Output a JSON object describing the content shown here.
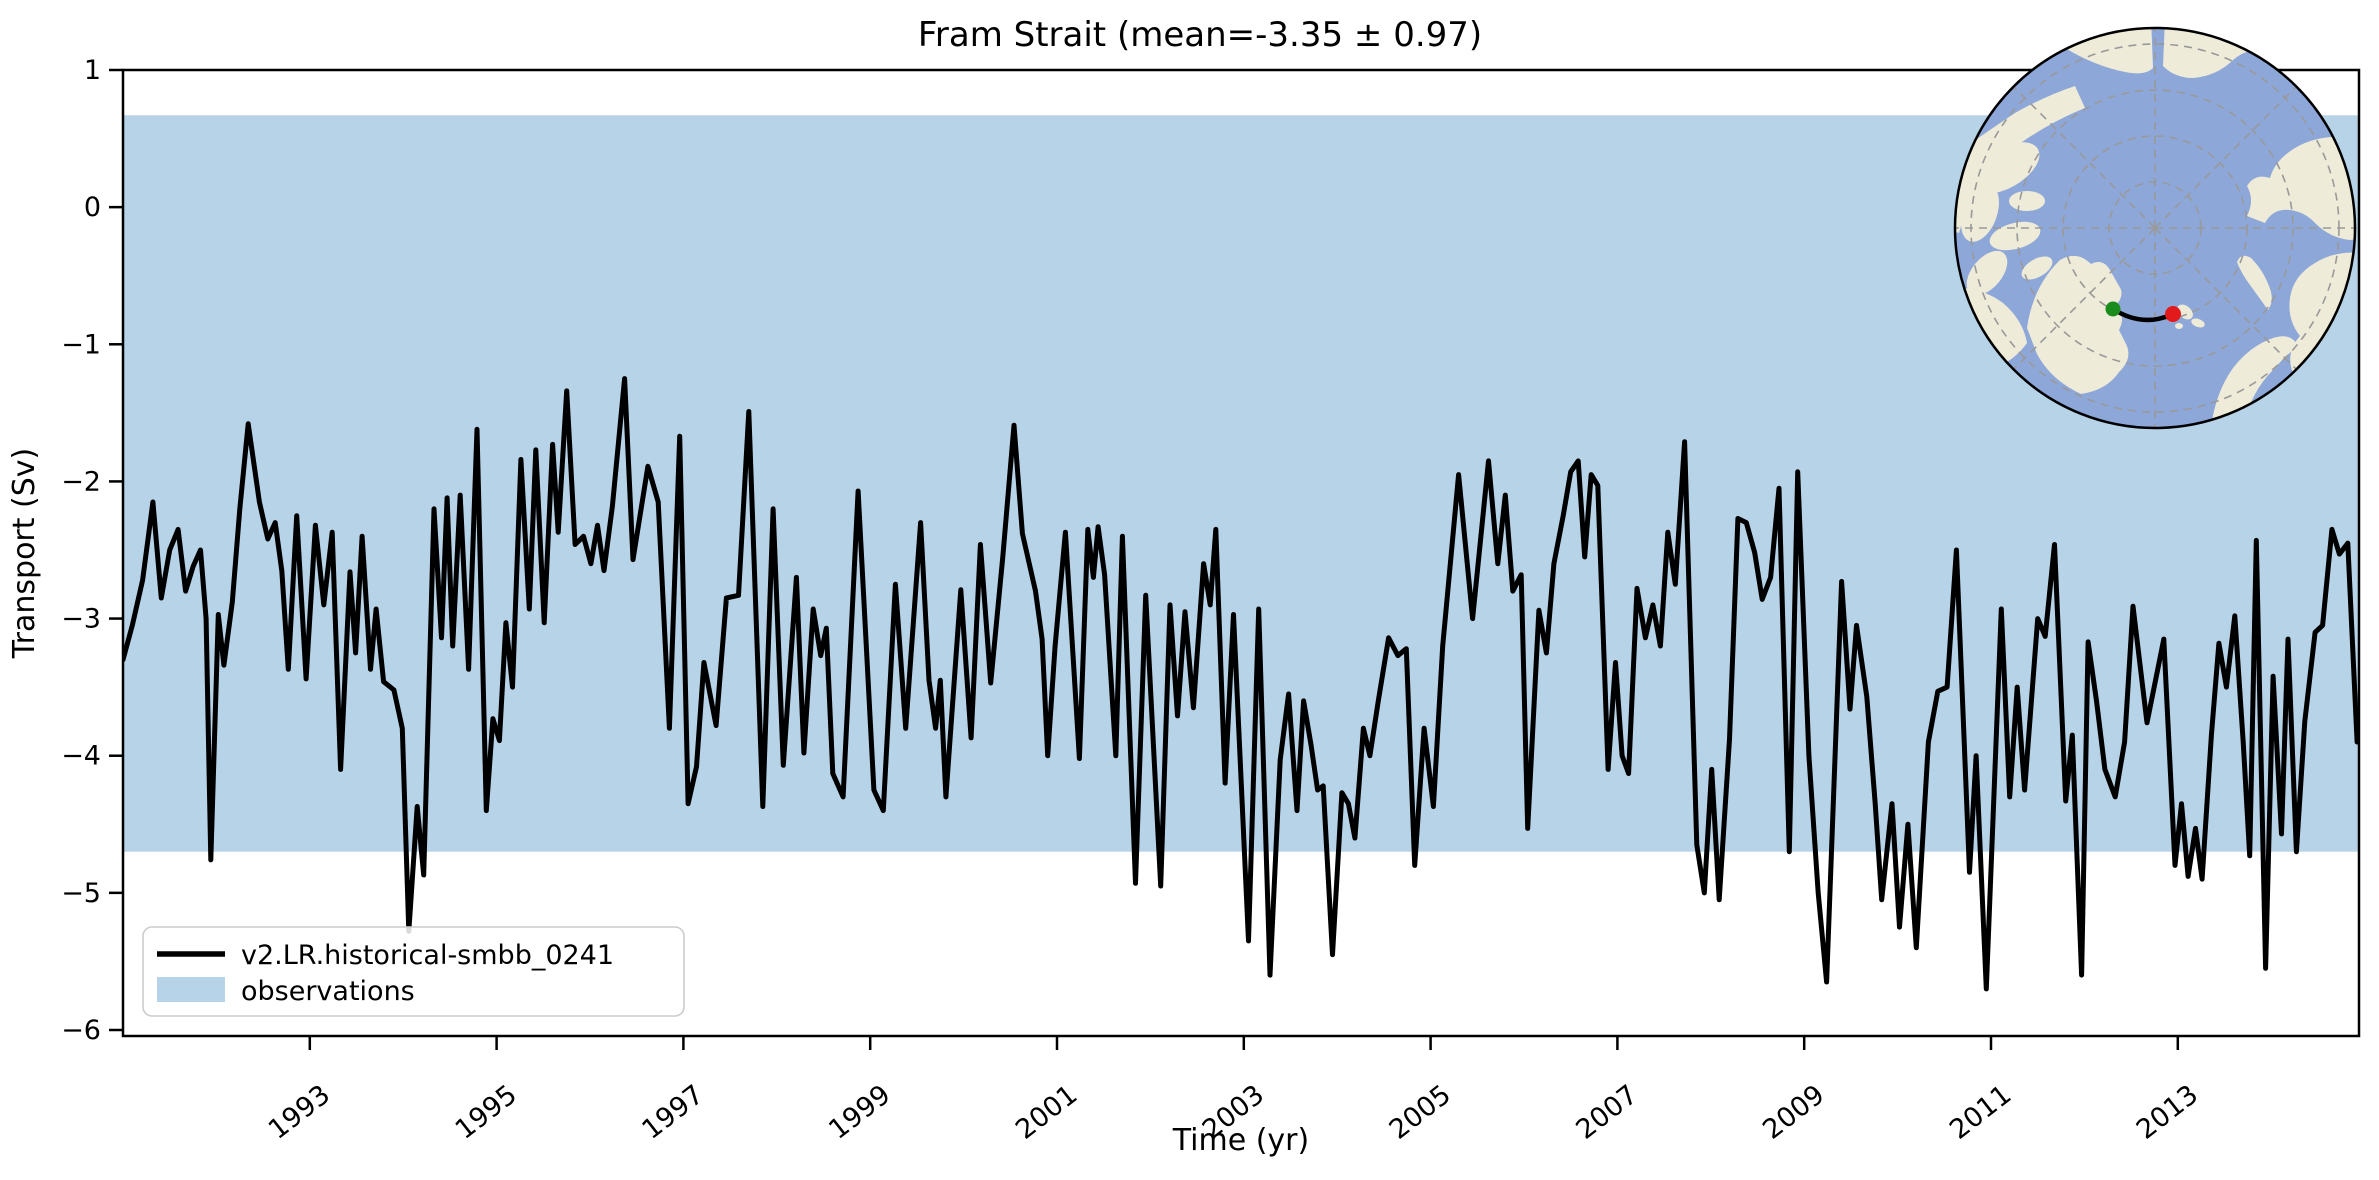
{
  "title": "Fram Strait (mean=-3.35 ± 0.97)",
  "axes": {
    "xlabel": "Time (yr)",
    "ylabel": "Transport (Sv)",
    "xticks": [
      1993,
      1995,
      1997,
      1999,
      2001,
      2003,
      2005,
      2007,
      2009,
      2011,
      2013
    ],
    "ytick_labels": [
      "1",
      "0",
      "−1",
      "−2",
      "−3",
      "−4",
      "−5",
      "−6"
    ],
    "ytick_values": [
      1,
      0,
      -1,
      -2,
      -3,
      -4,
      -5,
      -6
    ]
  },
  "legend": {
    "entries": [
      {
        "label": "v2.LR.historical-smbb_0241",
        "swatch": "line"
      },
      {
        "label": "observations",
        "swatch": "patch"
      }
    ]
  },
  "colors": {
    "line": "#000000",
    "band": "#b7d3e8",
    "spine": "#000000",
    "legend_border": "#cccccc",
    "map_ocean": "#8ea7d9",
    "map_land": "#eeebd8",
    "map_graticule": "#999999",
    "marker_start": "#1a8c1c",
    "marker_end": "#e31a1c"
  },
  "inset_map": {
    "description": "north-polar view with Fram Strait section",
    "start_marker": "green-dot",
    "end_marker": "red-dot"
  },
  "chart_data": {
    "type": "line",
    "title": "Fram Strait (mean=-3.35 ± 0.97)",
    "xlabel": "Time (yr)",
    "ylabel": "Transport (Sv)",
    "xlim": [
      1991.0,
      2015.0
    ],
    "ylim": [
      -6.05,
      1.0
    ],
    "grid": false,
    "legend_position": "lower left",
    "mean": -3.35,
    "std": 0.97,
    "observations_band": {
      "label": "observations",
      "low": -4.7,
      "high": 0.67
    },
    "series": [
      {
        "name": "v2.LR.historical-smbb_0241",
        "units": "Sv",
        "points": [
          [
            1991.0,
            -3.3
          ],
          [
            1991.1,
            -3.05
          ],
          [
            1991.21,
            -2.72
          ],
          [
            1991.32,
            -2.15
          ],
          [
            1991.41,
            -2.85
          ],
          [
            1991.5,
            -2.5
          ],
          [
            1991.59,
            -2.35
          ],
          [
            1991.67,
            -2.8
          ],
          [
            1991.75,
            -2.62
          ],
          [
            1991.83,
            -2.5
          ],
          [
            1991.89,
            -3.0
          ],
          [
            1991.94,
            -4.76
          ],
          [
            1992.02,
            -2.97
          ],
          [
            1992.08,
            -3.34
          ],
          [
            1992.17,
            -2.88
          ],
          [
            1992.25,
            -2.2
          ],
          [
            1992.34,
            -1.58
          ],
          [
            1992.46,
            -2.15
          ],
          [
            1992.55,
            -2.42
          ],
          [
            1992.63,
            -2.3
          ],
          [
            1992.7,
            -2.65
          ],
          [
            1992.77,
            -3.37
          ],
          [
            1992.86,
            -2.25
          ],
          [
            1992.96,
            -3.44
          ],
          [
            1993.06,
            -2.32
          ],
          [
            1993.15,
            -2.9
          ],
          [
            1993.24,
            -2.37
          ],
          [
            1993.33,
            -4.1
          ],
          [
            1993.43,
            -2.66
          ],
          [
            1993.49,
            -3.25
          ],
          [
            1993.56,
            -2.4
          ],
          [
            1993.65,
            -3.37
          ],
          [
            1993.71,
            -2.93
          ],
          [
            1993.79,
            -3.46
          ],
          [
            1993.9,
            -3.52
          ],
          [
            1993.99,
            -3.8
          ],
          [
            1994.06,
            -5.28
          ],
          [
            1994.15,
            -4.37
          ],
          [
            1994.22,
            -4.87
          ],
          [
            1994.33,
            -2.2
          ],
          [
            1994.41,
            -3.14
          ],
          [
            1994.47,
            -2.12
          ],
          [
            1994.53,
            -3.2
          ],
          [
            1994.61,
            -2.1
          ],
          [
            1994.7,
            -3.37
          ],
          [
            1994.79,
            -1.62
          ],
          [
            1994.89,
            -4.4
          ],
          [
            1994.96,
            -3.73
          ],
          [
            1995.03,
            -3.89
          ],
          [
            1995.1,
            -3.03
          ],
          [
            1995.17,
            -3.5
          ],
          [
            1995.26,
            -1.84
          ],
          [
            1995.35,
            -2.93
          ],
          [
            1995.42,
            -1.77
          ],
          [
            1995.51,
            -3.03
          ],
          [
            1995.6,
            -1.73
          ],
          [
            1995.66,
            -2.37
          ],
          [
            1995.75,
            -1.34
          ],
          [
            1995.84,
            -2.46
          ],
          [
            1995.93,
            -2.4
          ],
          [
            1996.01,
            -2.6
          ],
          [
            1996.08,
            -2.32
          ],
          [
            1996.15,
            -2.65
          ],
          [
            1996.24,
            -2.18
          ],
          [
            1996.37,
            -1.25
          ],
          [
            1996.46,
            -2.57
          ],
          [
            1996.62,
            -1.89
          ],
          [
            1996.73,
            -2.15
          ],
          [
            1996.85,
            -3.8
          ],
          [
            1996.96,
            -1.67
          ],
          [
            1997.05,
            -4.35
          ],
          [
            1997.14,
            -4.08
          ],
          [
            1997.22,
            -3.32
          ],
          [
            1997.35,
            -3.78
          ],
          [
            1997.46,
            -2.85
          ],
          [
            1997.59,
            -2.83
          ],
          [
            1997.7,
            -1.49
          ],
          [
            1997.85,
            -4.37
          ],
          [
            1997.96,
            -2.2
          ],
          [
            1998.07,
            -4.07
          ],
          [
            1998.21,
            -2.7
          ],
          [
            1998.29,
            -3.98
          ],
          [
            1998.39,
            -2.93
          ],
          [
            1998.47,
            -3.27
          ],
          [
            1998.53,
            -3.07
          ],
          [
            1998.6,
            -4.13
          ],
          [
            1998.71,
            -4.3
          ],
          [
            1998.87,
            -2.07
          ],
          [
            1999.04,
            -4.25
          ],
          [
            1999.14,
            -4.4
          ],
          [
            1999.27,
            -2.75
          ],
          [
            1999.38,
            -3.8
          ],
          [
            1999.54,
            -2.3
          ],
          [
            1999.63,
            -3.45
          ],
          [
            1999.7,
            -3.8
          ],
          [
            1999.75,
            -3.45
          ],
          [
            1999.81,
            -4.3
          ],
          [
            1999.97,
            -2.79
          ],
          [
            2000.08,
            -3.87
          ],
          [
            2000.18,
            -2.46
          ],
          [
            2000.29,
            -3.47
          ],
          [
            2000.42,
            -2.55
          ],
          [
            2000.54,
            -1.59
          ],
          [
            2000.63,
            -2.38
          ],
          [
            2000.77,
            -2.8
          ],
          [
            2000.84,
            -3.15
          ],
          [
            2000.9,
            -4.0
          ],
          [
            2000.98,
            -3.2
          ],
          [
            2001.09,
            -2.37
          ],
          [
            2001.24,
            -4.02
          ],
          [
            2001.33,
            -2.35
          ],
          [
            2001.39,
            -2.7
          ],
          [
            2001.44,
            -2.33
          ],
          [
            2001.51,
            -2.68
          ],
          [
            2001.63,
            -4.0
          ],
          [
            2001.7,
            -2.4
          ],
          [
            2001.84,
            -4.93
          ],
          [
            2001.95,
            -2.83
          ],
          [
            2002.11,
            -4.95
          ],
          [
            2002.21,
            -2.9
          ],
          [
            2002.29,
            -3.71
          ],
          [
            2002.37,
            -2.95
          ],
          [
            2002.46,
            -3.65
          ],
          [
            2002.57,
            -2.6
          ],
          [
            2002.64,
            -2.9
          ],
          [
            2002.7,
            -2.35
          ],
          [
            2002.8,
            -4.2
          ],
          [
            2002.89,
            -2.97
          ],
          [
            2003.05,
            -5.35
          ],
          [
            2003.16,
            -2.93
          ],
          [
            2003.28,
            -5.6
          ],
          [
            2003.39,
            -4.03
          ],
          [
            2003.48,
            -3.55
          ],
          [
            2003.57,
            -4.4
          ],
          [
            2003.64,
            -3.6
          ],
          [
            2003.72,
            -3.92
          ],
          [
            2003.79,
            -4.25
          ],
          [
            2003.85,
            -4.22
          ],
          [
            2003.95,
            -5.45
          ],
          [
            2004.05,
            -4.27
          ],
          [
            2004.12,
            -4.35
          ],
          [
            2004.19,
            -4.6
          ],
          [
            2004.28,
            -3.8
          ],
          [
            2004.35,
            -4.0
          ],
          [
            2004.44,
            -3.6
          ],
          [
            2004.55,
            -3.14
          ],
          [
            2004.65,
            -3.27
          ],
          [
            2004.74,
            -3.22
          ],
          [
            2004.83,
            -4.8
          ],
          [
            2004.93,
            -3.8
          ],
          [
            2005.03,
            -4.37
          ],
          [
            2005.13,
            -3.2
          ],
          [
            2005.3,
            -1.95
          ],
          [
            2005.45,
            -3.0
          ],
          [
            2005.62,
            -1.85
          ],
          [
            2005.72,
            -2.6
          ],
          [
            2005.8,
            -2.1
          ],
          [
            2005.88,
            -2.8
          ],
          [
            2005.97,
            -2.68
          ],
          [
            2006.04,
            -4.53
          ],
          [
            2006.16,
            -2.94
          ],
          [
            2006.24,
            -3.25
          ],
          [
            2006.32,
            -2.6
          ],
          [
            2006.42,
            -2.25
          ],
          [
            2006.5,
            -1.93
          ],
          [
            2006.58,
            -1.85
          ],
          [
            2006.65,
            -2.55
          ],
          [
            2006.72,
            -1.95
          ],
          [
            2006.79,
            -2.03
          ],
          [
            2006.9,
            -4.1
          ],
          [
            2006.98,
            -3.32
          ],
          [
            2007.05,
            -4.0
          ],
          [
            2007.12,
            -4.13
          ],
          [
            2007.21,
            -2.78
          ],
          [
            2007.3,
            -3.14
          ],
          [
            2007.38,
            -2.9
          ],
          [
            2007.46,
            -3.2
          ],
          [
            2007.54,
            -2.37
          ],
          [
            2007.62,
            -2.75
          ],
          [
            2007.72,
            -1.71
          ],
          [
            2007.85,
            -4.65
          ],
          [
            2007.93,
            -5.0
          ],
          [
            2008.01,
            -4.1
          ],
          [
            2008.09,
            -5.05
          ],
          [
            2008.2,
            -3.88
          ],
          [
            2008.29,
            -2.27
          ],
          [
            2008.38,
            -2.3
          ],
          [
            2008.47,
            -2.52
          ],
          [
            2008.55,
            -2.86
          ],
          [
            2008.64,
            -2.7
          ],
          [
            2008.73,
            -2.05
          ],
          [
            2008.84,
            -4.7
          ],
          [
            2008.93,
            -1.93
          ],
          [
            2009.05,
            -4.0
          ],
          [
            2009.15,
            -5.0
          ],
          [
            2009.24,
            -5.65
          ],
          [
            2009.4,
            -2.73
          ],
          [
            2009.49,
            -3.66
          ],
          [
            2009.56,
            -3.05
          ],
          [
            2009.67,
            -3.57
          ],
          [
            2009.76,
            -4.35
          ],
          [
            2009.83,
            -5.05
          ],
          [
            2009.94,
            -4.35
          ],
          [
            2010.02,
            -5.25
          ],
          [
            2010.11,
            -4.5
          ],
          [
            2010.2,
            -5.4
          ],
          [
            2010.33,
            -3.9
          ],
          [
            2010.43,
            -3.53
          ],
          [
            2010.53,
            -3.5
          ],
          [
            2010.63,
            -2.5
          ],
          [
            2010.77,
            -4.85
          ],
          [
            2010.84,
            -4.0
          ],
          [
            2010.95,
            -5.7
          ],
          [
            2011.11,
            -2.93
          ],
          [
            2011.2,
            -4.3
          ],
          [
            2011.28,
            -3.5
          ],
          [
            2011.36,
            -4.25
          ],
          [
            2011.5,
            -3.0
          ],
          [
            2011.58,
            -3.13
          ],
          [
            2011.68,
            -2.46
          ],
          [
            2011.8,
            -4.33
          ],
          [
            2011.87,
            -3.85
          ],
          [
            2011.97,
            -5.6
          ],
          [
            2012.04,
            -3.17
          ],
          [
            2012.13,
            -3.6
          ],
          [
            2012.22,
            -4.1
          ],
          [
            2012.33,
            -4.3
          ],
          [
            2012.43,
            -3.9
          ],
          [
            2012.52,
            -2.91
          ],
          [
            2012.67,
            -3.76
          ],
          [
            2012.85,
            -3.15
          ],
          [
            2012.97,
            -4.8
          ],
          [
            2013.04,
            -4.35
          ],
          [
            2013.11,
            -4.88
          ],
          [
            2013.19,
            -4.53
          ],
          [
            2013.26,
            -4.9
          ],
          [
            2013.36,
            -3.85
          ],
          [
            2013.44,
            -3.18
          ],
          [
            2013.52,
            -3.5
          ],
          [
            2013.61,
            -2.98
          ],
          [
            2013.7,
            -3.9
          ],
          [
            2013.77,
            -4.73
          ],
          [
            2013.84,
            -2.43
          ],
          [
            2013.94,
            -5.55
          ],
          [
            2014.02,
            -3.42
          ],
          [
            2014.11,
            -4.57
          ],
          [
            2014.18,
            -3.15
          ],
          [
            2014.27,
            -4.7
          ],
          [
            2014.36,
            -3.75
          ],
          [
            2014.47,
            -3.1
          ],
          [
            2014.55,
            -3.05
          ],
          [
            2014.65,
            -2.35
          ],
          [
            2014.73,
            -2.53
          ],
          [
            2014.82,
            -2.45
          ],
          [
            2014.92,
            -3.9
          ]
        ]
      }
    ]
  }
}
